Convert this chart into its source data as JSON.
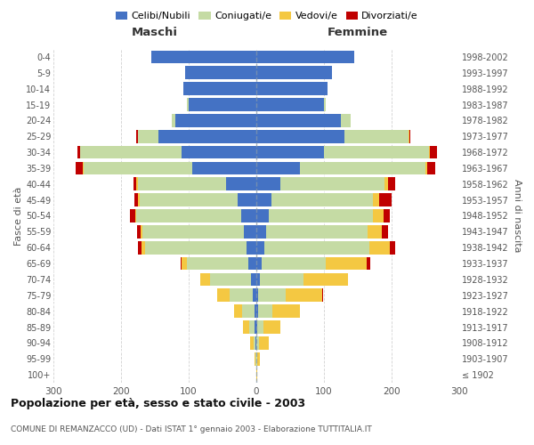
{
  "age_groups": [
    "100+",
    "95-99",
    "90-94",
    "85-89",
    "80-84",
    "75-79",
    "70-74",
    "65-69",
    "60-64",
    "55-59",
    "50-54",
    "45-49",
    "40-44",
    "35-39",
    "30-34",
    "25-29",
    "20-24",
    "15-19",
    "10-14",
    "5-9",
    "0-4"
  ],
  "birth_years": [
    "≤ 1902",
    "1903-1907",
    "1908-1912",
    "1913-1917",
    "1918-1922",
    "1923-1927",
    "1928-1932",
    "1933-1937",
    "1938-1942",
    "1943-1947",
    "1948-1952",
    "1953-1957",
    "1958-1962",
    "1963-1967",
    "1968-1972",
    "1973-1977",
    "1978-1982",
    "1983-1987",
    "1988-1992",
    "1993-1997",
    "1998-2002"
  ],
  "maschi": {
    "celibi": [
      0,
      0,
      1,
      2,
      3,
      5,
      8,
      12,
      15,
      18,
      22,
      28,
      45,
      95,
      110,
      145,
      120,
      100,
      108,
      105,
      155
    ],
    "coniugati": [
      0,
      1,
      3,
      8,
      18,
      35,
      60,
      90,
      150,
      150,
      155,
      145,
      130,
      160,
      150,
      30,
      5,
      2,
      0,
      0,
      0
    ],
    "vedovi": [
      0,
      1,
      5,
      10,
      12,
      18,
      15,
      8,
      5,
      3,
      2,
      2,
      2,
      2,
      1,
      0,
      0,
      0,
      0,
      0,
      0
    ],
    "divorziati": [
      0,
      0,
      0,
      0,
      0,
      0,
      0,
      2,
      5,
      5,
      8,
      5,
      4,
      10,
      3,
      2,
      0,
      0,
      0,
      0,
      0
    ]
  },
  "femmine": {
    "nubili": [
      0,
      0,
      0,
      1,
      2,
      3,
      5,
      8,
      12,
      15,
      18,
      22,
      35,
      65,
      100,
      130,
      125,
      100,
      105,
      112,
      145
    ],
    "coniugate": [
      0,
      1,
      4,
      10,
      22,
      40,
      65,
      95,
      155,
      150,
      155,
      150,
      155,
      185,
      155,
      95,
      15,
      3,
      0,
      0,
      0
    ],
    "vedove": [
      1,
      4,
      15,
      25,
      40,
      55,
      65,
      60,
      30,
      20,
      15,
      10,
      5,
      3,
      2,
      1,
      0,
      0,
      0,
      0,
      0
    ],
    "divorziate": [
      0,
      0,
      0,
      0,
      1,
      1,
      1,
      5,
      8,
      10,
      10,
      18,
      10,
      12,
      10,
      2,
      0,
      0,
      0,
      0,
      0
    ]
  },
  "colors": {
    "celibi_nubili": "#4472c4",
    "coniugati": "#c5dba4",
    "vedovi": "#f4c842",
    "divorziati": "#c00000"
  },
  "xlim": 300,
  "title": "Popolazione per età, sesso e stato civile - 2003",
  "subtitle": "COMUNE DI REMANZACCO (UD) - Dati ISTAT 1° gennaio 2003 - Elaborazione TUTTITALIA.IT",
  "ylabel_left": "Fasce di età",
  "ylabel_right": "Anni di nascita",
  "xlabel_left": "Maschi",
  "xlabel_right": "Femmine",
  "background_color": "#ffffff",
  "grid_color": "#cccccc"
}
